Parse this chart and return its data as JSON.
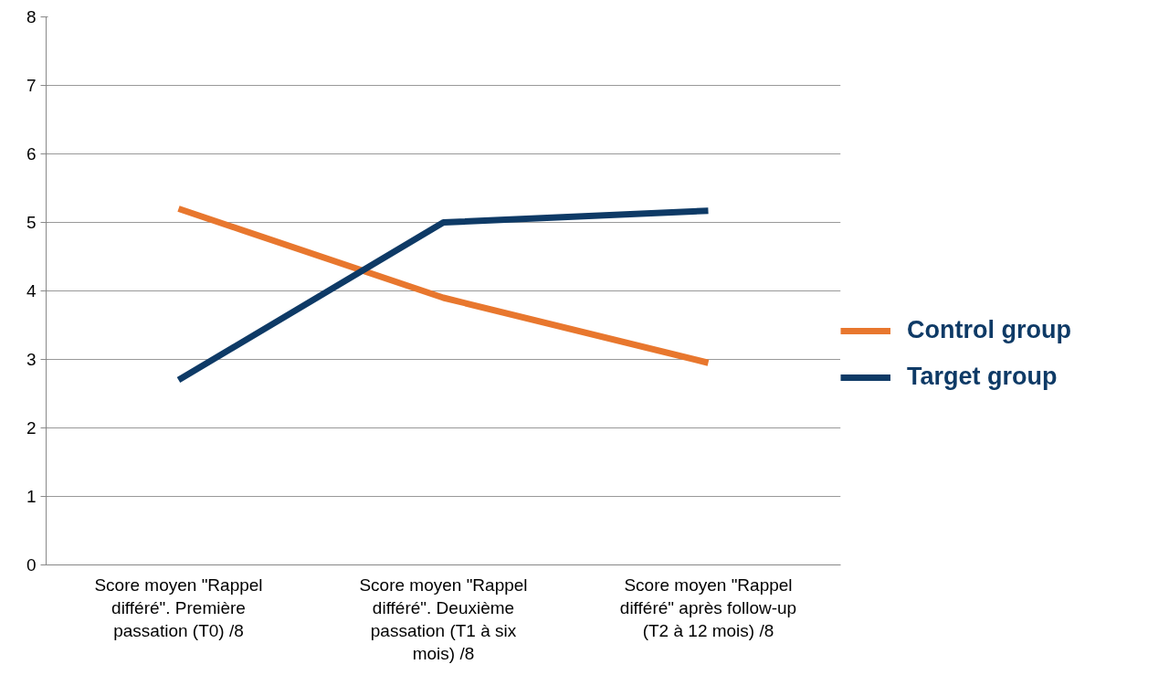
{
  "chart_data": {
    "type": "line",
    "categories": [
      "Score moyen \"Rappel différé\". Première passation (T0) /8",
      "Score moyen \"Rappel différé\". Deuxième passation (T1 à six mois) /8",
      "Score moyen \"Rappel différé\" après follow-up (T2 à 12 mois) /8"
    ],
    "series": [
      {
        "name": "Control group",
        "color": "#e8772e",
        "values": [
          5.2,
          3.9,
          2.95
        ]
      },
      {
        "name": "Target group",
        "color": "#0e3a66",
        "values": [
          2.7,
          5.0,
          5.17
        ]
      }
    ],
    "ylim": [
      0,
      8
    ],
    "yticks": [
      0,
      1,
      2,
      3,
      4,
      5,
      6,
      7,
      8
    ],
    "grid": "y",
    "legend": "right",
    "marker": "none",
    "line_style": "solid"
  }
}
